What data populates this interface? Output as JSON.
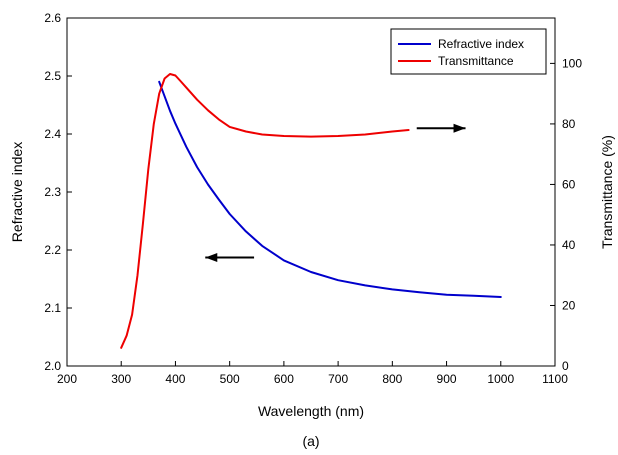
{
  "chart_data": {
    "type": "line",
    "title": "",
    "caption": "(a)",
    "xlabel": "Wavelength (nm)",
    "ylabel_left": "Refractive index",
    "ylabel_right": "Transmittance (%)",
    "xlim": [
      200,
      1100
    ],
    "ylim_left": [
      2.0,
      2.6
    ],
    "ylim_right": [
      0,
      115
    ],
    "x_ticks": [
      200,
      300,
      400,
      500,
      600,
      700,
      800,
      900,
      1000,
      1100
    ],
    "y_left_ticks": [
      "2.0",
      "2.1",
      "2.2",
      "2.3",
      "2.4",
      "2.5",
      "2.6"
    ],
    "y_right_ticks": [
      0,
      20,
      40,
      60,
      80,
      100
    ],
    "grid": false,
    "legend_position": "top-right",
    "series": [
      {
        "name": "Refractive index",
        "axis": "left",
        "color": "#0000cc",
        "x": [
          370,
          380,
          390,
          400,
          420,
          440,
          460,
          480,
          500,
          530,
          560,
          600,
          650,
          700,
          750,
          800,
          850,
          900,
          950,
          1000
        ],
        "y": [
          2.49,
          2.465,
          2.44,
          2.418,
          2.378,
          2.343,
          2.313,
          2.287,
          2.262,
          2.232,
          2.207,
          2.182,
          2.162,
          2.148,
          2.139,
          2.132,
          2.127,
          2.123,
          2.121,
          2.119
        ]
      },
      {
        "name": "Transmittance",
        "axis": "right",
        "color": "#ee0000",
        "x": [
          300,
          310,
          320,
          330,
          340,
          350,
          360,
          370,
          380,
          390,
          400,
          410,
          420,
          440,
          460,
          480,
          500,
          530,
          560,
          600,
          650,
          700,
          750,
          800,
          830
        ],
        "y": [
          6,
          10,
          17,
          30,
          47,
          65,
          80,
          90,
          95,
          96.5,
          96,
          94,
          92,
          88,
          84.5,
          81.5,
          79,
          77.5,
          76.5,
          76,
          75.8,
          76,
          76.5,
          77.5,
          78
        ]
      }
    ],
    "annotations": [
      {
        "type": "arrow",
        "direction": "left",
        "from_x": 545,
        "to_x": 455,
        "y": 2.187,
        "axis": "left"
      },
      {
        "type": "arrow",
        "direction": "right",
        "from_x": 845,
        "to_x": 935,
        "y": 2.41,
        "axis": "left"
      }
    ]
  }
}
